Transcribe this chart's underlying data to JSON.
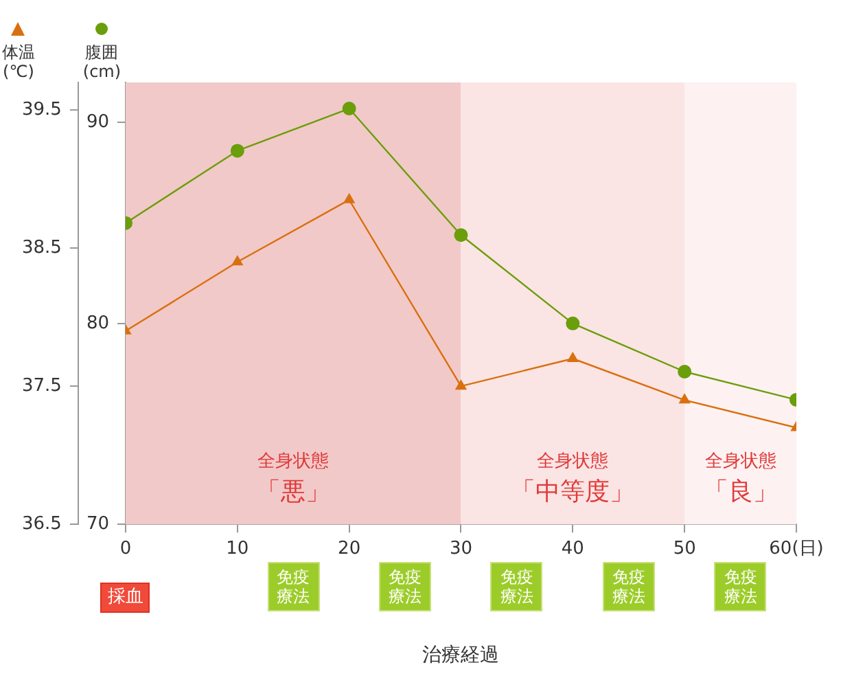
{
  "chart_data": {
    "type": "line",
    "xlabel": "治療経過",
    "ylabel": "体温\n(℃)",
    "y2label": "腹囲\n(cm)",
    "x": [
      0,
      10,
      20,
      30,
      40,
      50,
      60
    ],
    "series": [
      {
        "color": "#d9700f",
        "marker": "triangle",
        "values": [
          37.9,
          38.4,
          38.85,
          37.5,
          37.7,
          37.4,
          37.2
        ]
      },
      {
        "color": "#6a9e0a",
        "marker": "circle",
        "axis": "y2",
        "values": [
          85,
          88.6,
          90.7,
          84.4,
          80,
          77.6,
          76.2
        ]
      }
    ],
    "xlim": [
      0,
      60
    ],
    "xticks": [
      0,
      10,
      20,
      30,
      40,
      50,
      {
        "value": 60,
        "label": "60(日)"
      }
    ],
    "ylim": [
      36.5,
      39.7
    ],
    "yticks": [
      36.5,
      37.5,
      38.5,
      39.5
    ],
    "y2lim": [
      70,
      92
    ],
    "y2ticks": [
      70,
      80,
      90
    ],
    "bands": [
      {
        "axis": "x",
        "from": 0,
        "to": 30,
        "label": "全身状態「悪」",
        "color": "#f2c9c9"
      },
      {
        "axis": "x",
        "from": 30,
        "to": 50,
        "label": "全身状態「中等度」",
        "color": "#fbe4e4"
      },
      {
        "axis": "x",
        "from": 50,
        "to": 60,
        "label": "全身状態「良」",
        "color": "#fdf1f1"
      }
    ],
    "annotations": [
      "採血",
      "免疫療法",
      "免疫療法",
      "免疫療法",
      "免疫療法",
      "免疫療法"
    ],
    "grid": false,
    "line_style": "solid",
    "legend": false
  }
}
